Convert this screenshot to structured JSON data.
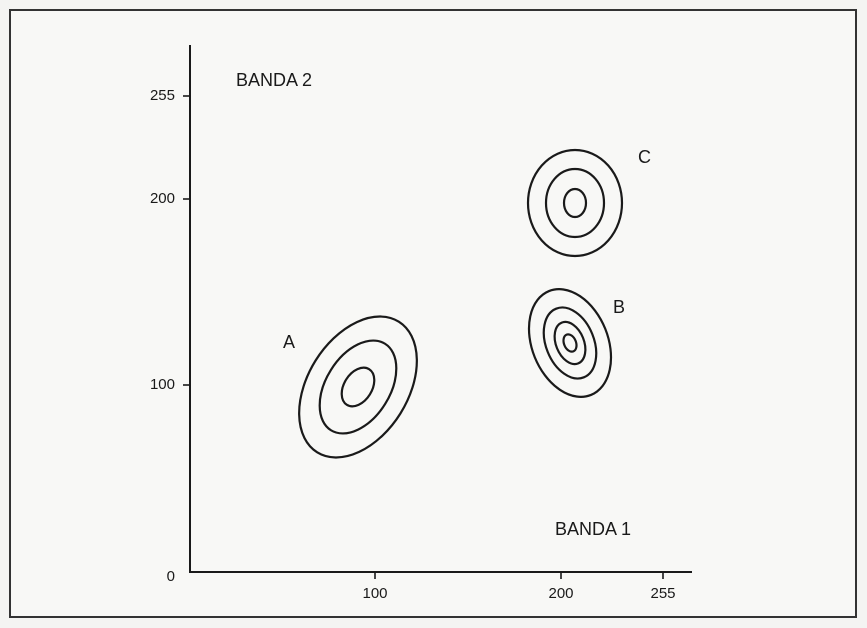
{
  "axes": {
    "x_label": "BANDA 1",
    "y_label": "BANDA 2",
    "x_ticks": [
      100,
      200,
      255
    ],
    "y_ticks": [
      0,
      100,
      200,
      255
    ]
  },
  "clusters": [
    {
      "label": "A"
    },
    {
      "label": "B"
    },
    {
      "label": "C"
    }
  ]
}
